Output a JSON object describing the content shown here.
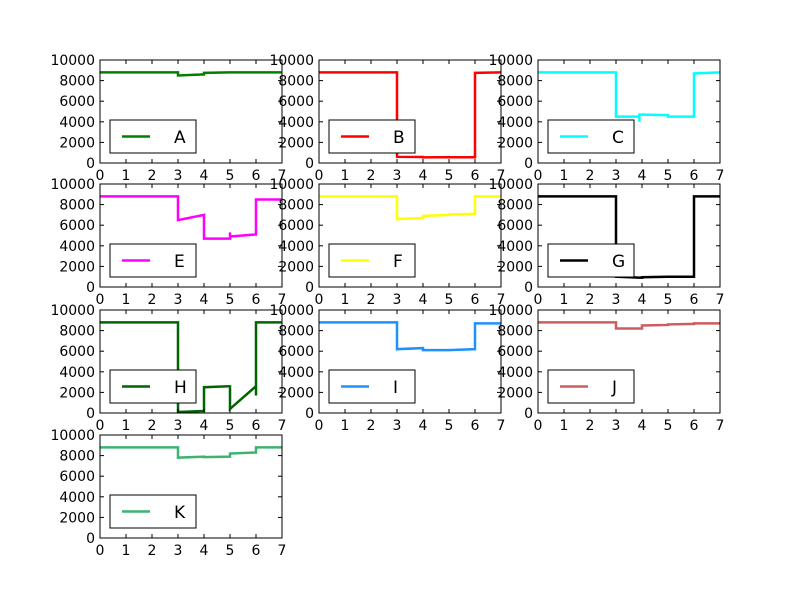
{
  "chart_data": [
    {
      "type": "line",
      "legend": "A",
      "color": "#008000",
      "legend_placement": "lower-left",
      "xlim": [
        0,
        7
      ],
      "ylim": [
        0,
        10000
      ],
      "xticks": [
        "0",
        "1",
        "2",
        "3",
        "4",
        "5",
        "6",
        "7"
      ],
      "yticks": [
        "0",
        "2000",
        "4000",
        "6000",
        "8000",
        "10000"
      ],
      "x": [
        0,
        1,
        2,
        3,
        3,
        4,
        4,
        5,
        5,
        6,
        6,
        7
      ],
      "y": [
        8800,
        8800,
        8800,
        8800,
        8500,
        8600,
        8750,
        8800,
        8800,
        8800,
        8800,
        8800
      ]
    },
    {
      "type": "line",
      "legend": "B",
      "color": "#ff0000",
      "legend_placement": "lower-left",
      "xlim": [
        0,
        7
      ],
      "ylim": [
        0,
        10000
      ],
      "xticks": [
        "0",
        "1",
        "2",
        "3",
        "4",
        "5",
        "6",
        "7"
      ],
      "yticks": [
        "0",
        "2000",
        "4000",
        "6000",
        "8000",
        "10000"
      ],
      "x": [
        0,
        1,
        2,
        3,
        3,
        4,
        4,
        5,
        5,
        6,
        6,
        7
      ],
      "y": [
        8800,
        8800,
        8800,
        8800,
        600,
        580,
        550,
        570,
        560,
        560,
        8750,
        8800
      ]
    },
    {
      "type": "line",
      "legend": "C",
      "color": "#00ffff",
      "legend_placement": "lower-left",
      "xlim": [
        0,
        7
      ],
      "ylim": [
        0,
        10000
      ],
      "xticks": [
        "0",
        "1",
        "2",
        "3",
        "4",
        "5",
        "6",
        "7"
      ],
      "yticks": [
        "0",
        "2000",
        "4000",
        "6000",
        "8000",
        "10000"
      ],
      "x": [
        0,
        1,
        2,
        3,
        3,
        3.9,
        3.9,
        3.9,
        4,
        4,
        5,
        5,
        6,
        6,
        7
      ],
      "y": [
        8800,
        8800,
        8800,
        8800,
        4500,
        4500,
        4000,
        4700,
        4700,
        4700,
        4650,
        4500,
        4500,
        8700,
        8800
      ]
    },
    {
      "type": "line",
      "legend": "E",
      "color": "#ff00ff",
      "legend_placement": "lower-left",
      "xlim": [
        0,
        7
      ],
      "ylim": [
        0,
        10000
      ],
      "xticks": [
        "0",
        "1",
        "2",
        "3",
        "4",
        "5",
        "6",
        "7"
      ],
      "yticks": [
        "0",
        "2000",
        "4000",
        "6000",
        "8000",
        "10000"
      ],
      "x": [
        0,
        1,
        2,
        3,
        3,
        4,
        4,
        5,
        5,
        5,
        6,
        6,
        7
      ],
      "y": [
        8800,
        8800,
        8800,
        8800,
        6500,
        7000,
        4700,
        4700,
        5300,
        4900,
        5100,
        8500,
        8500
      ]
    },
    {
      "type": "line",
      "legend": "F",
      "color": "#ffff00",
      "legend_placement": "lower-left",
      "xlim": [
        0,
        7
      ],
      "ylim": [
        0,
        10000
      ],
      "xticks": [
        "0",
        "1",
        "2",
        "3",
        "4",
        "5",
        "6",
        "7"
      ],
      "yticks": [
        "0",
        "2000",
        "4000",
        "6000",
        "8000",
        "10000"
      ],
      "x": [
        0,
        1,
        2,
        3,
        3,
        4,
        4,
        5,
        5,
        6,
        6,
        7
      ],
      "y": [
        8800,
        8800,
        8800,
        8800,
        6600,
        6700,
        6900,
        7000,
        7050,
        7100,
        8800,
        8800
      ]
    },
    {
      "type": "line",
      "legend": "G",
      "color": "#000000",
      "legend_placement": "lower-left",
      "xlim": [
        0,
        7
      ],
      "ylim": [
        0,
        10000
      ],
      "xticks": [
        "0",
        "1",
        "2",
        "3",
        "4",
        "5",
        "6",
        "7"
      ],
      "yticks": [
        "0",
        "2000",
        "4000",
        "6000",
        "8000",
        "10000"
      ],
      "x": [
        0,
        1,
        2,
        3,
        3,
        4,
        4,
        5,
        5,
        6,
        6,
        7
      ],
      "y": [
        8800,
        8800,
        8800,
        8800,
        1000,
        900,
        950,
        1000,
        1000,
        1000,
        8800,
        8800
      ]
    },
    {
      "type": "line",
      "legend": "H",
      "color": "#006400",
      "legend_placement": "lower-left",
      "xlim": [
        0,
        7
      ],
      "ylim": [
        0,
        10000
      ],
      "xticks": [
        "0",
        "1",
        "2",
        "3",
        "4",
        "5",
        "6",
        "7"
      ],
      "yticks": [
        "0",
        "2000",
        "4000",
        "6000",
        "8000",
        "10000"
      ],
      "x": [
        0,
        1,
        2,
        3,
        3,
        4,
        4,
        5,
        5,
        5,
        6,
        6,
        6,
        7
      ],
      "y": [
        8800,
        8800,
        8800,
        8800,
        100,
        200,
        2500,
        2600,
        2700,
        400,
        2600,
        1700,
        8800,
        8800
      ]
    },
    {
      "type": "line",
      "legend": "I",
      "color": "#1e90ff",
      "legend_placement": "lower-left",
      "xlim": [
        0,
        7
      ],
      "ylim": [
        0,
        10000
      ],
      "xticks": [
        "0",
        "1",
        "2",
        "3",
        "4",
        "5",
        "6",
        "7"
      ],
      "yticks": [
        "0",
        "2000",
        "4000",
        "6000",
        "8000",
        "10000"
      ],
      "x": [
        0,
        1,
        2,
        3,
        3,
        4,
        4,
        5,
        5,
        6,
        6,
        7
      ],
      "y": [
        8800,
        8800,
        8800,
        8800,
        6200,
        6300,
        6100,
        6100,
        6100,
        6200,
        8700,
        8700
      ]
    },
    {
      "type": "line",
      "legend": "J",
      "color": "#cd5c5c",
      "legend_placement": "lower-left",
      "xlim": [
        0,
        7
      ],
      "ylim": [
        0,
        10000
      ],
      "xticks": [
        "0",
        "1",
        "2",
        "3",
        "4",
        "5",
        "6",
        "7"
      ],
      "yticks": [
        "0",
        "2000",
        "4000",
        "6000",
        "8000",
        "10000"
      ],
      "x": [
        0,
        1,
        2,
        3,
        3,
        4,
        4,
        5,
        5,
        6,
        6,
        7
      ],
      "y": [
        8800,
        8800,
        8800,
        8800,
        8200,
        8200,
        8500,
        8550,
        8600,
        8650,
        8700,
        8700
      ]
    },
    {
      "type": "line",
      "legend": "K",
      "color": "#3cb371",
      "legend_placement": "lower-left",
      "xlim": [
        0,
        7
      ],
      "ylim": [
        0,
        10000
      ],
      "xticks": [
        "0",
        "1",
        "2",
        "3",
        "4",
        "5",
        "6",
        "7"
      ],
      "yticks": [
        "0",
        "2000",
        "4000",
        "6000",
        "8000",
        "10000"
      ],
      "x": [
        0,
        1,
        2,
        3,
        3,
        4,
        4,
        5,
        5,
        6,
        6,
        7
      ],
      "y": [
        8800,
        8800,
        8800,
        8800,
        7800,
        7900,
        7850,
        7900,
        8200,
        8300,
        8800,
        8800
      ]
    }
  ]
}
